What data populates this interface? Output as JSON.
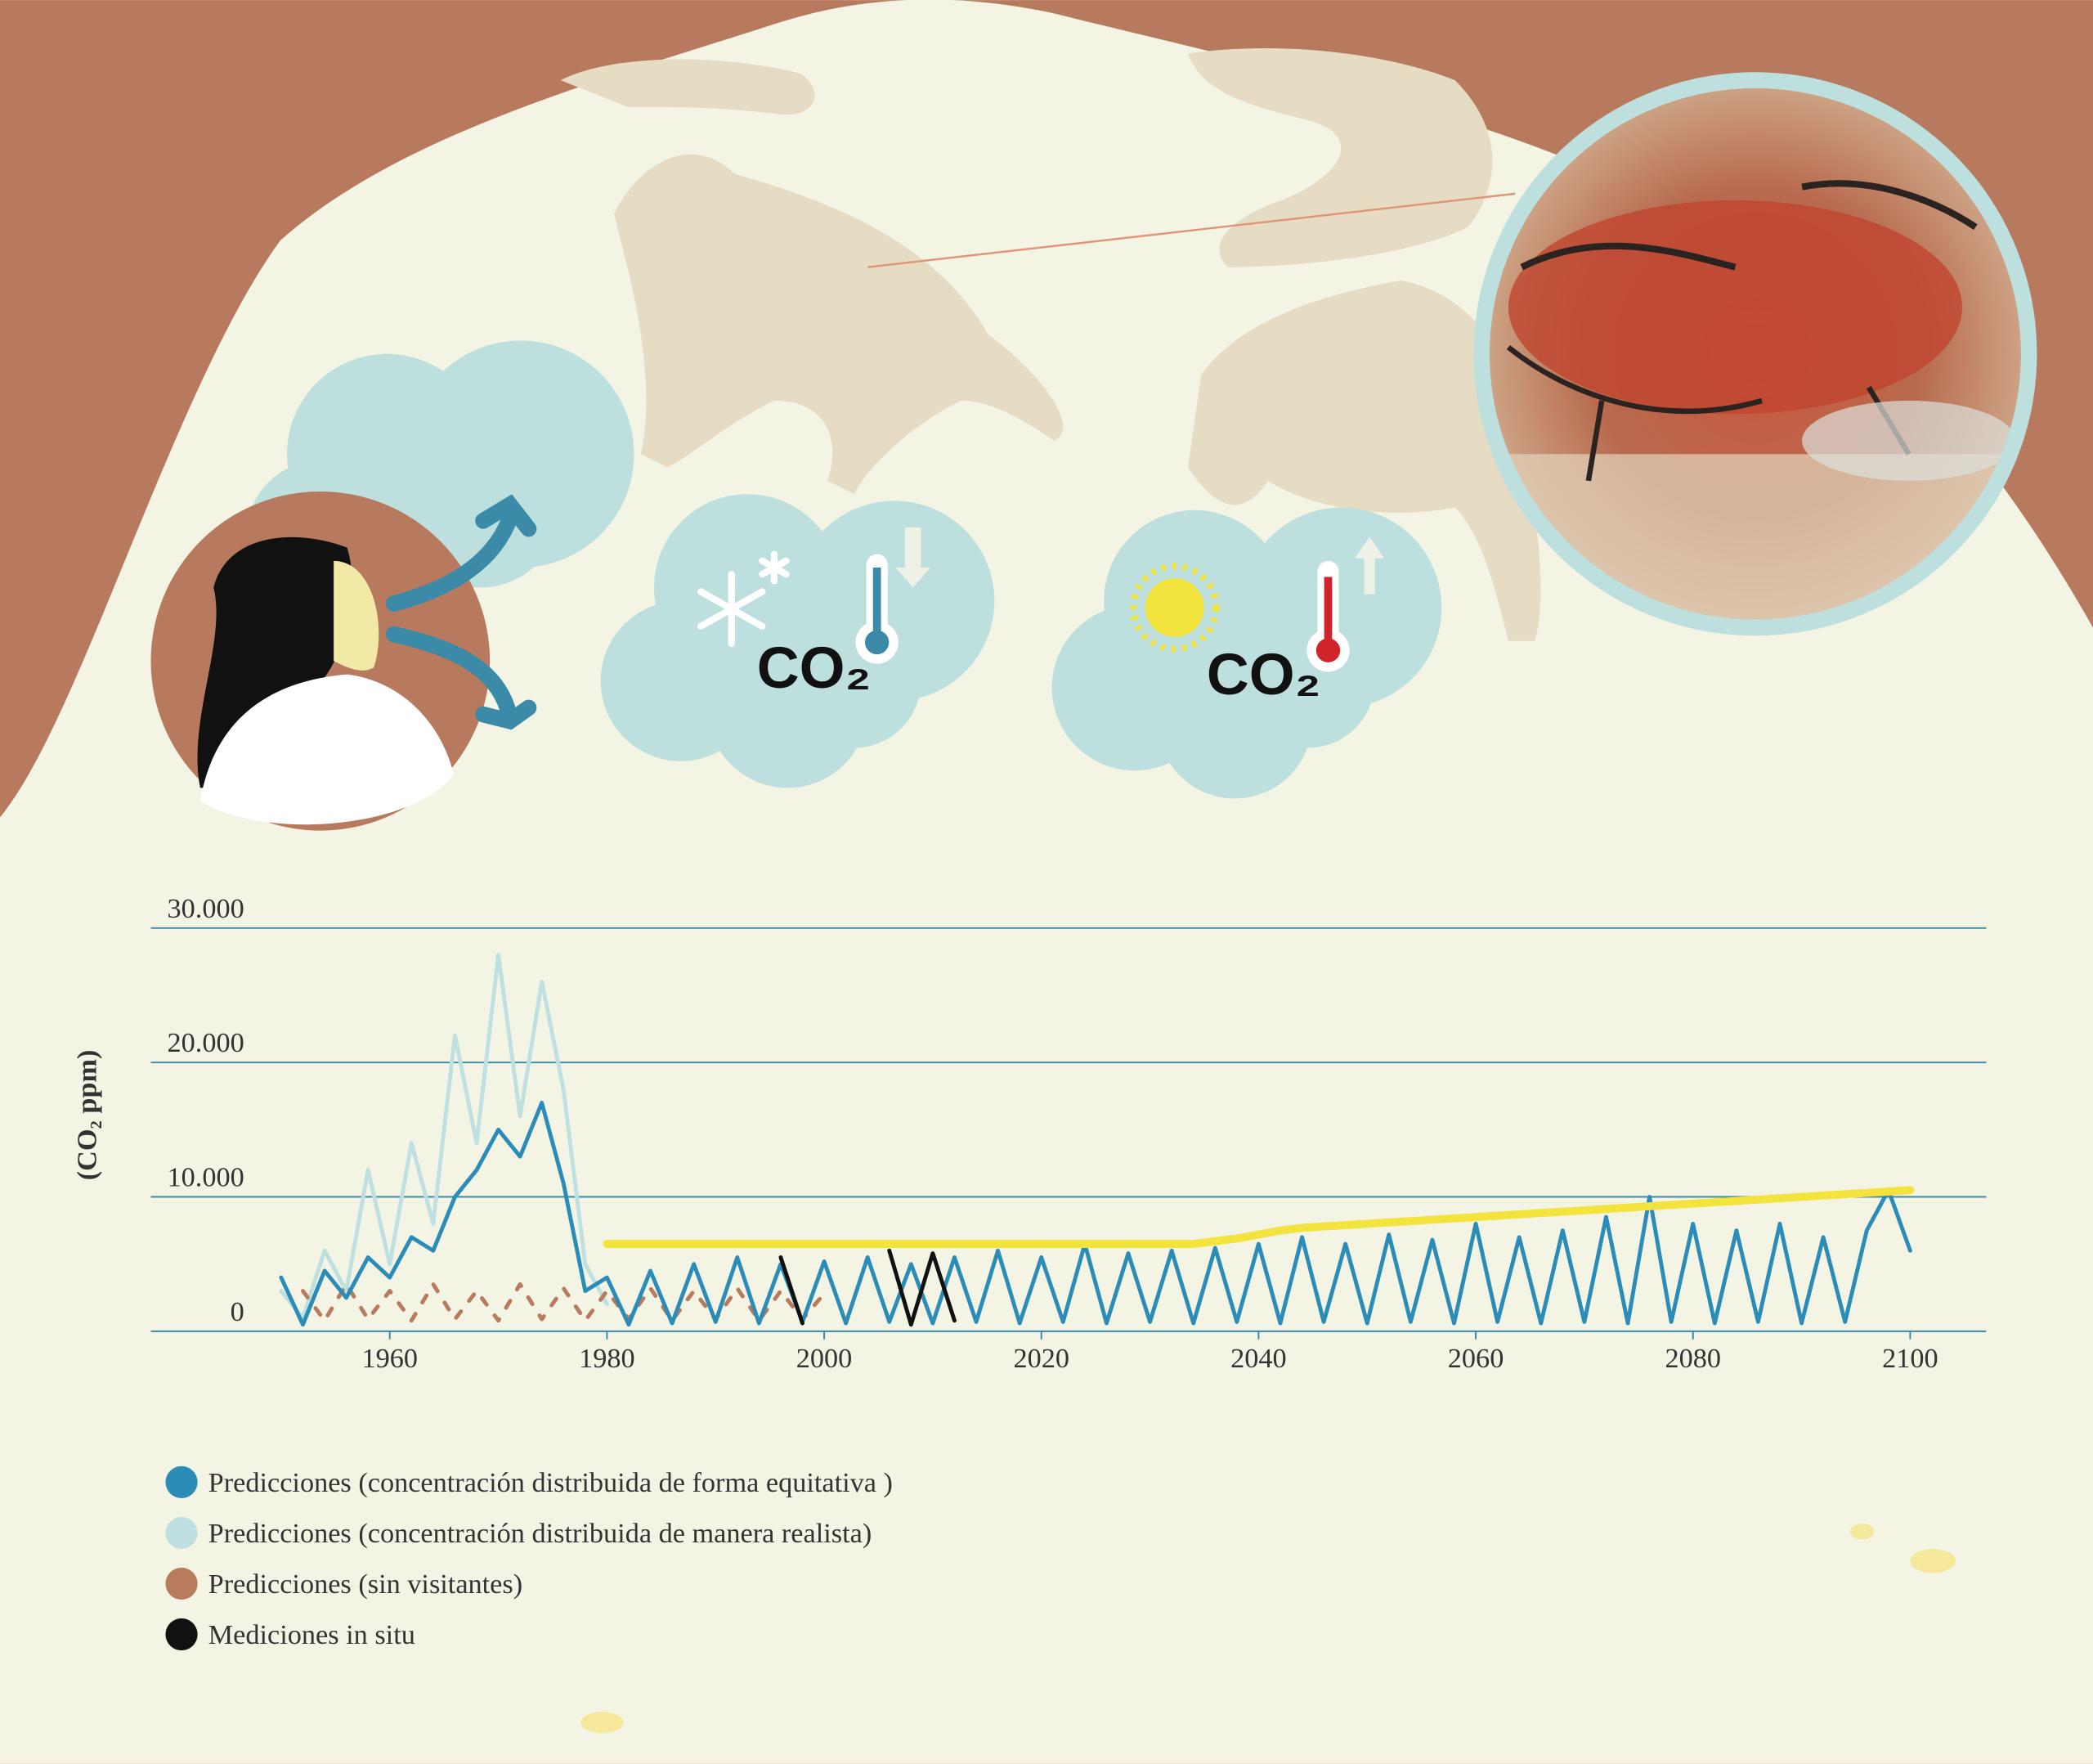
{
  "illustration": {
    "labels": [
      "CO₂",
      "CO₂"
    ]
  },
  "chart_data": {
    "type": "line",
    "y_label": "(CO₂ ppm)",
    "xlim": [
      1938,
      2107
    ],
    "xticks": [
      1960,
      1980,
      2000,
      2020,
      2040,
      2060,
      2080,
      2100
    ],
    "ylim": [
      0,
      30000
    ],
    "yticks": [
      0,
      {
        "value": 10000,
        "label": "10.000"
      },
      {
        "value": 20000,
        "label": "20.000"
      },
      {
        "value": 30000,
        "label": "30.000"
      }
    ],
    "grid": true,
    "legend": "bottom-left",
    "x": [
      1950,
      1952,
      1954,
      1956,
      1958,
      1960,
      1962,
      1964,
      1966,
      1968,
      1970,
      1972,
      1974,
      1976,
      1978,
      1980,
      1982,
      1984,
      1986,
      1988,
      1990,
      1992,
      1994,
      1996,
      1998,
      2000,
      2002,
      2004,
      2006,
      2008,
      2010,
      2012,
      2014,
      2016,
      2018,
      2020,
      2022,
      2024,
      2026,
      2028,
      2030,
      2032,
      2034,
      2036,
      2038,
      2040,
      2042,
      2044,
      2046,
      2048,
      2050,
      2052,
      2054,
      2056,
      2058,
      2060,
      2062,
      2064,
      2066,
      2068,
      2070,
      2072,
      2074,
      2076,
      2078,
      2080,
      2082,
      2084,
      2086,
      2088,
      2090,
      2092,
      2094,
      2096,
      2098,
      2100
    ],
    "series": [
      {
        "name": "Predicciones (concentración distribuida de forma equitativa )",
        "color": "#2b8cb8",
        "values": [
          4000,
          500,
          4500,
          2500,
          5500,
          4000,
          7000,
          6000,
          10000,
          12000,
          15000,
          13000,
          17000,
          11000,
          3000,
          4000,
          500,
          4500,
          600,
          5000,
          700,
          5500,
          600,
          5000,
          700,
          5200,
          600,
          5500,
          700,
          5000,
          600,
          5500,
          700,
          6000,
          600,
          5500,
          700,
          6500,
          600,
          5800,
          700,
          6000,
          600,
          6200,
          700,
          6500,
          600,
          7000,
          700,
          6500,
          600,
          7200,
          700,
          6800,
          600,
          8000,
          700,
          7000,
          600,
          7500,
          700,
          8500,
          600,
          10000,
          700,
          8000,
          600,
          7500,
          700,
          8000,
          600,
          7000,
          700,
          7500,
          10500,
          6000
        ]
      },
      {
        "name": "Predicciones (concentración distribuida de manera realista)",
        "color": "#bfe0e1",
        "values": [
          3000,
          1000,
          6000,
          3000,
          12000,
          5000,
          14000,
          8000,
          22000,
          14000,
          28000,
          16000,
          26000,
          18000,
          5000,
          2000,
          null,
          null,
          null,
          null,
          null,
          null,
          null,
          null,
          null,
          null,
          null,
          null,
          null,
          null,
          null,
          null,
          null,
          null,
          null,
          null,
          null,
          null,
          null,
          null,
          null,
          null,
          null,
          null,
          null,
          null,
          null,
          null,
          null,
          null,
          null,
          null,
          null,
          null,
          null,
          null,
          null,
          null,
          null,
          null,
          null,
          null,
          null,
          null,
          null,
          null,
          null,
          null,
          null,
          null,
          null,
          null,
          null,
          null,
          null,
          null
        ]
      },
      {
        "name": "Predicciones (sin visitantes)",
        "color": "#b97b5d",
        "values": [
          null,
          3000,
          800,
          3500,
          900,
          3000,
          800,
          3500,
          900,
          3000,
          800,
          3500,
          900,
          3200,
          800,
          3000,
          900,
          3200,
          800,
          3000,
          900,
          3200,
          800,
          3000,
          900,
          2800,
          null,
          null,
          null,
          null,
          null,
          null,
          null,
          null,
          null,
          null,
          null,
          null,
          null,
          null,
          null,
          null,
          null,
          null,
          null,
          null,
          null,
          null,
          null,
          null,
          null,
          null,
          null,
          null,
          null,
          null,
          null,
          null,
          null,
          null,
          null,
          null,
          null,
          null,
          null,
          null,
          null,
          null,
          null,
          null,
          null,
          null,
          null,
          null,
          null,
          null
        ]
      },
      {
        "name": "Mediciones in situ",
        "color": "#111111",
        "values": [
          null,
          null,
          null,
          null,
          null,
          null,
          null,
          null,
          null,
          null,
          null,
          null,
          null,
          null,
          null,
          null,
          null,
          null,
          null,
          null,
          null,
          null,
          null,
          5500,
          600,
          null,
          null,
          null,
          6000,
          500,
          5800,
          800,
          null,
          null,
          null,
          null,
          null,
          null,
          null,
          null,
          null,
          null,
          null,
          null,
          null,
          null,
          null,
          null,
          null,
          null,
          null,
          null,
          null,
          null,
          null,
          null,
          null,
          null,
          null,
          null,
          null,
          null,
          null,
          null,
          null,
          null,
          null,
          null,
          null,
          null,
          null,
          null,
          null,
          null,
          null,
          null
        ]
      },
      {
        "color": "#f3e33d",
        "values": [
          null,
          null,
          null,
          null,
          null,
          null,
          null,
          null,
          null,
          null,
          null,
          null,
          null,
          null,
          null,
          6500,
          6500,
          6500,
          6500,
          6500,
          6500,
          6500,
          6500,
          6500,
          6500,
          6500,
          6500,
          6500,
          6500,
          6500,
          6500,
          6500,
          6500,
          6500,
          6500,
          6500,
          6500,
          6500,
          6500,
          6500,
          6500,
          6500,
          6500,
          6700,
          6900,
          7200,
          7500,
          7700,
          7800,
          7900,
          8000,
          8100,
          8200,
          8300,
          8400,
          8500,
          8600,
          8700,
          8800,
          8900,
          9000,
          9100,
          9200,
          9300,
          9400,
          9500,
          9600,
          9700,
          9800,
          9900,
          10000,
          10100,
          10200,
          10300,
          10400,
          10500
        ]
      }
    ]
  }
}
